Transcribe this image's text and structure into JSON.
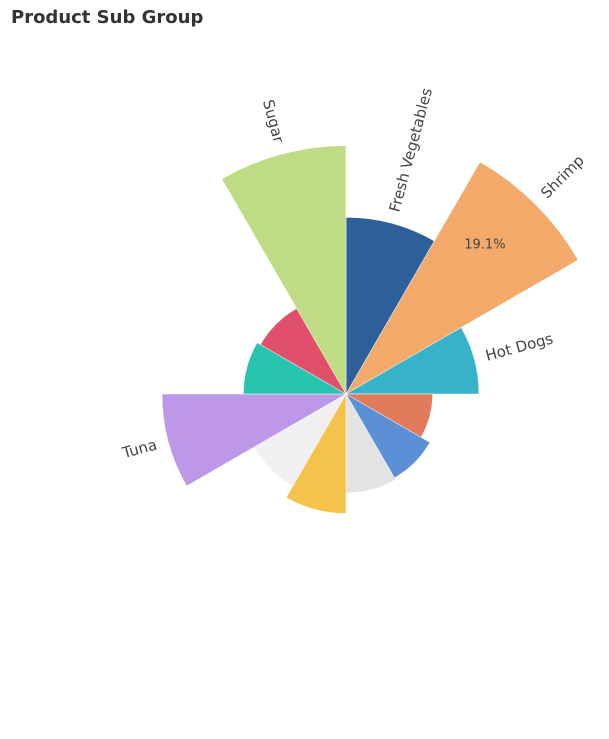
{
  "widget": {
    "title": "Product Sub Group"
  },
  "chart_data": {
    "type": "pie",
    "title": "Product Sub Group",
    "variant": "nightingale-rose",
    "series": [
      {
        "name": "Fresh Vegetables",
        "value": 8.3,
        "color": "#2d5f9a",
        "label": "Fresh Vegetables"
      },
      {
        "name": "Shrimp",
        "value": 19.1,
        "color": "#f2a96a",
        "label": "Shrimp",
        "percent_label": "19.1%"
      },
      {
        "name": "Hot Dogs",
        "value": 4.7,
        "color": "#36b3c9",
        "label": "Hot Dogs"
      },
      {
        "name": "",
        "value": 2.0,
        "color": "#e07c5c",
        "label": ""
      },
      {
        "name": "",
        "value": 2.5,
        "color": "#5b8fd6",
        "label": ""
      },
      {
        "name": "",
        "value": 2.6,
        "color": "#e3e3e3",
        "label": ""
      },
      {
        "name": "",
        "value": 3.8,
        "color": "#f5c34c",
        "label": ""
      },
      {
        "name": "",
        "value": 3.0,
        "color": "#f0f0f0",
        "label": ""
      },
      {
        "name": "Tuna",
        "value": 9.0,
        "color": "#bd97e8",
        "label": "Tuna"
      },
      {
        "name": "",
        "value": 2.8,
        "color": "#27c4b0",
        "label": ""
      },
      {
        "name": "",
        "value": 2.6,
        "color": "#e0506a",
        "label": ""
      },
      {
        "name": "Sugar",
        "value": 16.4,
        "color": "#bedc83",
        "label": "Sugar"
      }
    ]
  }
}
